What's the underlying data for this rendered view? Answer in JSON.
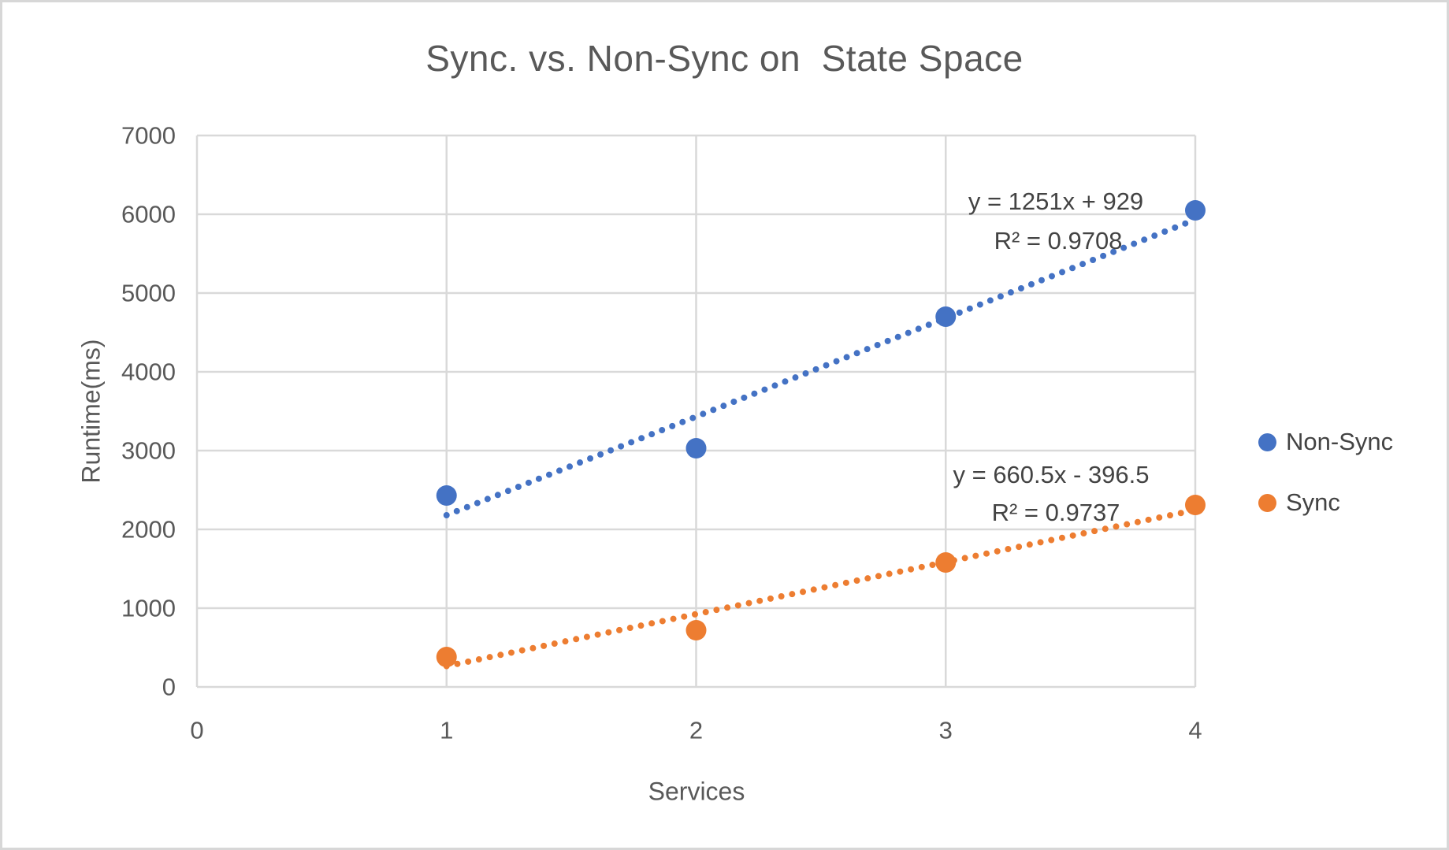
{
  "title": "Sync. vs. Non-Sync on  State Space",
  "chart_data": {
    "type": "scatter",
    "title": "Sync. vs. Non-Sync on  State Space",
    "xlabel": "Services",
    "ylabel": "Runtime(ms)",
    "xlim": [
      0,
      4
    ],
    "ylim": [
      0,
      7000
    ],
    "x_ticks": [
      "0",
      "1",
      "2",
      "3",
      "4"
    ],
    "y_ticks": [
      "0",
      "1000",
      "2000",
      "3000",
      "4000",
      "5000",
      "6000",
      "7000"
    ],
    "grid": true,
    "legend_position": "right",
    "x": [
      1,
      2,
      3,
      4
    ],
    "series": [
      {
        "name": "Non-Sync",
        "color": "#4472C4",
        "values": [
          2430,
          3030,
          4700,
          6050
        ],
        "trendline": {
          "style": "dotted",
          "slope": 1251,
          "intercept": 929,
          "equation": "y = 1251x + 929",
          "r2_label": "R² = 0.9708"
        }
      },
      {
        "name": "Sync",
        "color": "#ED7D31",
        "values": [
          380,
          720,
          1580,
          2310
        ],
        "trendline": {
          "style": "dotted",
          "slope": 660.5,
          "intercept": -396.5,
          "equation": "y = 660.5x - 396.5",
          "r2_label": "R² = 0.9737"
        }
      }
    ]
  },
  "colors": {
    "gridline": "#D9D9D9",
    "tick_text": "#595959",
    "annotation_text": "#434343",
    "card_border": "#D7D7D7"
  }
}
